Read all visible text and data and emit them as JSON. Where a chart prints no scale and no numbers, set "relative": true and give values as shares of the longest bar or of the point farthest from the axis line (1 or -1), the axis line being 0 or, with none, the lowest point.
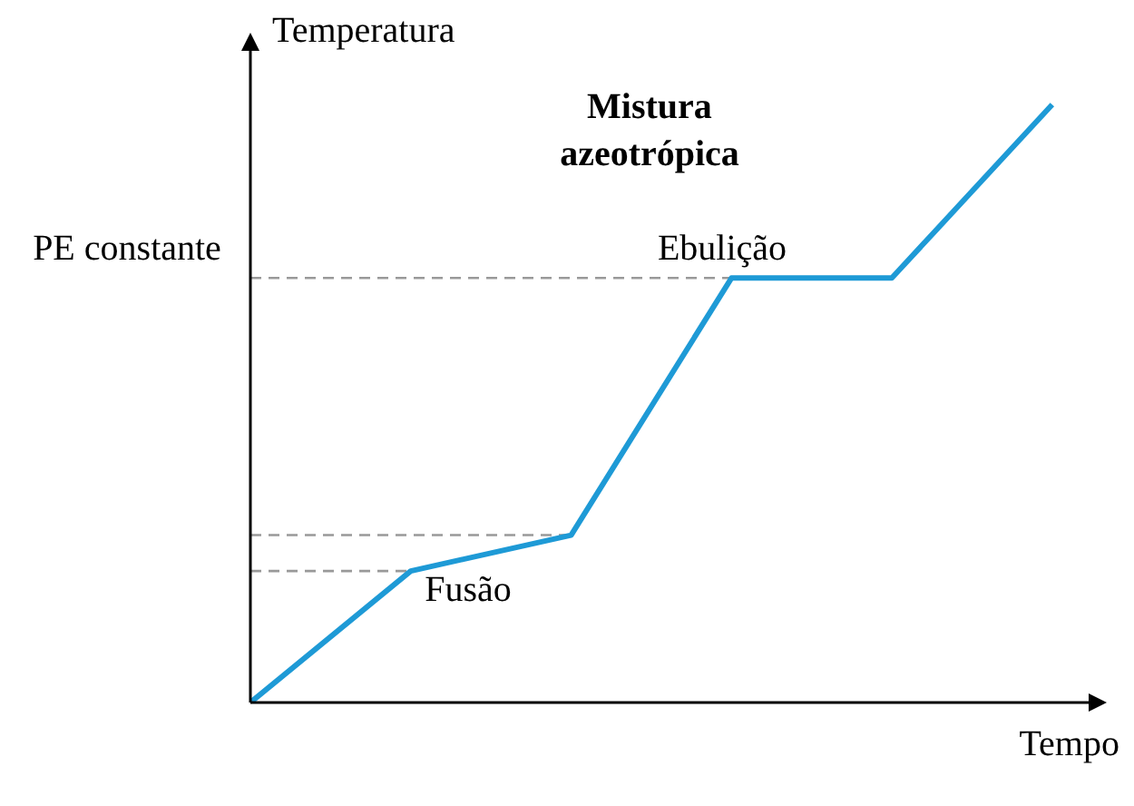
{
  "chart_data": {
    "type": "line",
    "relative": true,
    "title": "Mistura azeotrópica",
    "xlabel": "Tempo",
    "ylabel": "Temperatura",
    "categories": [
      null,
      null,
      null,
      null,
      null,
      null
    ],
    "series": [
      {
        "color": "#1e9ad6",
        "values": [
          0,
          0.22,
          0.28,
          0.71,
          0.71,
          1
        ]
      }
    ],
    "ref_lines": [
      {
        "axis": "y",
        "value": 0.71,
        "label": "PE constante",
        "color": "#999999",
        "line_style": "dashed"
      },
      {
        "axis": "y",
        "value": 0.28,
        "label": null,
        "color": "#999999",
        "line_style": "dashed"
      },
      {
        "axis": "y",
        "value": 0.22,
        "label": null,
        "color": "#999999",
        "line_style": "dashed"
      }
    ],
    "annotations": [
      "Ebulição",
      "Fusão"
    ],
    "marker": "none",
    "line_style": "solid"
  }
}
